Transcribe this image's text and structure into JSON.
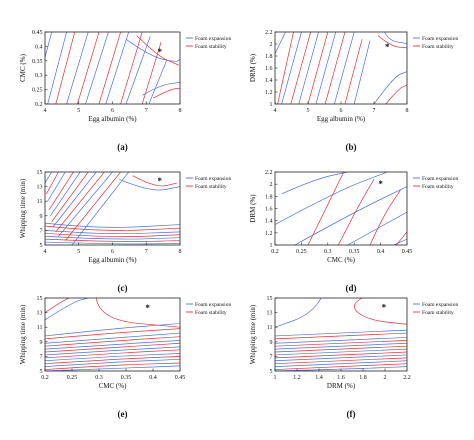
{
  "legend_colors": {
    "Foam expansion": "#4a6fe3",
    "Foam stability": "#e0303a"
  },
  "chart_data": [
    {
      "type": "contour",
      "panel_label": "(a)",
      "xlabel": "Egg albumin (%)",
      "ylabel": "CMC (%)",
      "xlim": [
        4,
        8
      ],
      "ylim": [
        0.2,
        0.45
      ],
      "xticks": [
        "4",
        "5",
        "6",
        "7",
        "8"
      ],
      "yticks": [
        "0.2",
        "0.25",
        "0.3",
        "0.35",
        "0.4",
        "0.45"
      ],
      "series": [
        {
          "name": "Foam expansion"
        },
        {
          "name": "Foam stability"
        }
      ],
      "optimum_marker": {
        "symbol": "*",
        "x": 7.4,
        "y": 0.38
      }
    },
    {
      "type": "contour",
      "panel_label": "(b)",
      "xlabel": "Egg albumin (%)",
      "ylabel": "DRM (%)",
      "xlim": [
        4,
        8
      ],
      "ylim": [
        1,
        2.2
      ],
      "xticks": [
        "4",
        "5",
        "6",
        "7",
        "8"
      ],
      "yticks": [
        "1",
        "1.2",
        "1.4",
        "1.6",
        "1.8",
        "2",
        "2.2"
      ],
      "series": [
        {
          "name": "Foam expansion"
        },
        {
          "name": "Foam stability"
        }
      ],
      "optimum_marker": {
        "symbol": "*",
        "x": 7.4,
        "y": 1.95
      }
    },
    {
      "type": "contour",
      "panel_label": "(c)",
      "xlabel": "Egg albumin (%)",
      "ylabel": "Whipping time (min)",
      "xlim": [
        4,
        8
      ],
      "ylim": [
        5,
        15
      ],
      "xticks": [
        "4",
        "5",
        "6",
        "7",
        "8"
      ],
      "yticks": [
        "5",
        "7",
        "9",
        "11",
        "13",
        "15"
      ],
      "series": [
        {
          "name": "Foam expansion"
        },
        {
          "name": "Foam stability"
        }
      ],
      "optimum_marker": {
        "symbol": "*",
        "x": 7.4,
        "y": 13.8
      }
    },
    {
      "type": "contour",
      "panel_label": "(d)",
      "xlabel": "CMC (%)",
      "ylabel": "DRM (%)",
      "xlim": [
        0.2,
        0.45
      ],
      "ylim": [
        1,
        2.2
      ],
      "xticks": [
        "0.2",
        "0.25",
        "0.3",
        "0.35",
        "0.4",
        "0.45"
      ],
      "yticks": [
        "1",
        "1.2",
        "1.4",
        "1.6",
        "1.8",
        "2",
        "2.2"
      ],
      "series": [
        {
          "name": "Foam expansion"
        },
        {
          "name": "Foam stability"
        }
      ],
      "optimum_marker": {
        "symbol": "*",
        "x": 0.4,
        "y": 2.0
      }
    },
    {
      "type": "contour",
      "panel_label": "(e)",
      "xlabel": "CMC (%)",
      "ylabel": "Whipping time (min)",
      "xlim": [
        0.2,
        0.45
      ],
      "ylim": [
        5,
        15
      ],
      "xticks": [
        "0.2",
        "0.25",
        "0.3",
        "0.35",
        "0.4",
        "0.45"
      ],
      "yticks": [
        "5",
        "7",
        "9",
        "11",
        "13",
        "15"
      ],
      "series": [
        {
          "name": "Foam expansion"
        },
        {
          "name": "Foam stability"
        }
      ],
      "optimum_marker": {
        "symbol": "*",
        "x": 0.39,
        "y": 13.6
      }
    },
    {
      "type": "contour",
      "panel_label": "(f)",
      "xlabel": "DRM (%)",
      "ylabel": "Whipping time (min)",
      "xlim": [
        1,
        2.2
      ],
      "ylim": [
        5,
        15
      ],
      "xticks": [
        "1",
        "1.2",
        "1.4",
        "1.6",
        "1.8",
        "2",
        "2.2"
      ],
      "yticks": [
        "5",
        "7",
        "9",
        "11",
        "13",
        "15"
      ],
      "series": [
        {
          "name": "Foam expansion"
        },
        {
          "name": "Foam stability"
        }
      ],
      "optimum_marker": {
        "symbol": "*",
        "x": 1.99,
        "y": 13.7
      }
    }
  ]
}
